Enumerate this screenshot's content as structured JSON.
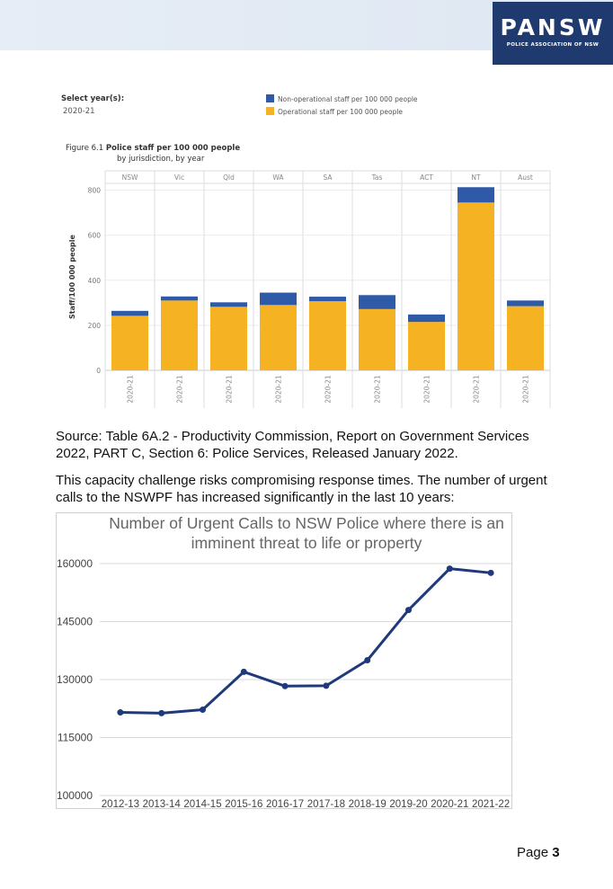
{
  "header": {
    "logo_name": "PANSW",
    "logo_sub": "POLICE ASSOCIATION OF NSW"
  },
  "figure1": {
    "select_label": "Select year(s):",
    "select_value": "2020-21",
    "figure_no": "Figure 6.1",
    "title": "Police staff per 100 000 people",
    "subtitle": "by jurisdiction, by year",
    "ylabel": "Staff/100 000 people",
    "legend": [
      {
        "label": "Non-operational staff per 100 000 people",
        "color": "#2e5aa8"
      },
      {
        "label": "Operational staff per 100 000 people",
        "color": "#f5b324"
      }
    ]
  },
  "paragraphs": {
    "source": "Source: Table 6A.2 - Productivity Commission, Report on Government Services 2022, PART C, Section 6: Police Services, Released January 2022.",
    "body": "This capacity challenge risks compromising response times. The number of urgent calls to the NSWPF has increased significantly in the last 10 years:"
  },
  "chart_data": [
    {
      "type": "bar",
      "title": "Police staff per 100 000 people",
      "ylabel": "Staff/100 000 people",
      "categories": [
        "NSW",
        "Vic",
        "Qld",
        "WA",
        "SA",
        "Tas",
        "ACT",
        "NT",
        "Aust"
      ],
      "x_tick": "2020-21",
      "yticks": [
        0,
        200,
        400,
        600,
        800
      ],
      "ylim": [
        0,
        830
      ],
      "stacked": true,
      "series": [
        {
          "name": "Operational staff per 100 000 people",
          "color": "#f5b324",
          "values": [
            242,
            310,
            282,
            290,
            307,
            272,
            215,
            745,
            285
          ]
        },
        {
          "name": "Non-operational staff per 100 000 people",
          "color": "#2e5aa8",
          "values": [
            22,
            18,
            20,
            55,
            20,
            62,
            33,
            68,
            25
          ]
        }
      ],
      "grid": true
    },
    {
      "type": "line",
      "title": "Number of Urgent Calls to NSW Police where there is an imminent threat to life or property",
      "categories": [
        "2012-13",
        "2013-14",
        "2014-15",
        "2015-16",
        "2016-17",
        "2017-18",
        "2018-19",
        "2019-20",
        "2020-21",
        "2021-22"
      ],
      "series": [
        {
          "color": "#1f3a7a",
          "values": [
            121500,
            121300,
            122200,
            132000,
            128300,
            128400,
            135000,
            148000,
            158700,
            157600
          ]
        }
      ],
      "yticks": [
        100000,
        115000,
        130000,
        145000,
        160000
      ],
      "ylim": [
        100000,
        160000
      ],
      "grid": true
    }
  ],
  "page": {
    "label": "Page",
    "number": "3"
  }
}
